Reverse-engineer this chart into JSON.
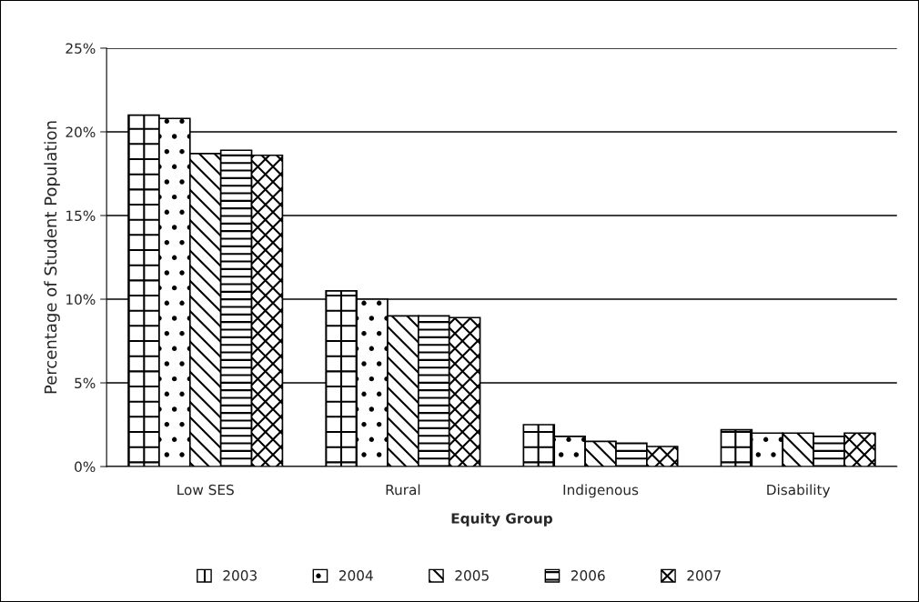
{
  "chart_data": {
    "type": "bar",
    "xlabel": "Equity Group",
    "ylabel": "Percentage of Student Population",
    "categories": [
      "Low SES",
      "Rural",
      "Indigenous",
      "Disability"
    ],
    "series": [
      {
        "name": "2003",
        "values": [
          21.0,
          10.5,
          2.5,
          2.2
        ]
      },
      {
        "name": "2004",
        "values": [
          20.8,
          10.0,
          1.8,
          2.0
        ]
      },
      {
        "name": "2005",
        "values": [
          18.7,
          9.0,
          1.5,
          2.0
        ]
      },
      {
        "name": "2006",
        "values": [
          18.9,
          9.0,
          1.4,
          1.8
        ]
      },
      {
        "name": "2007",
        "values": [
          18.6,
          8.9,
          1.2,
          2.0
        ]
      }
    ],
    "ylim": [
      0,
      25
    ],
    "yticks": [
      {
        "value": 0,
        "label": "0%"
      },
      {
        "value": 5,
        "label": "5%"
      },
      {
        "value": 10,
        "label": "10%"
      },
      {
        "value": 15,
        "label": "15%"
      },
      {
        "value": 20,
        "label": "20%"
      },
      {
        "value": 25,
        "label": "25%"
      }
    ],
    "grid": "y",
    "legend": "bottom"
  }
}
